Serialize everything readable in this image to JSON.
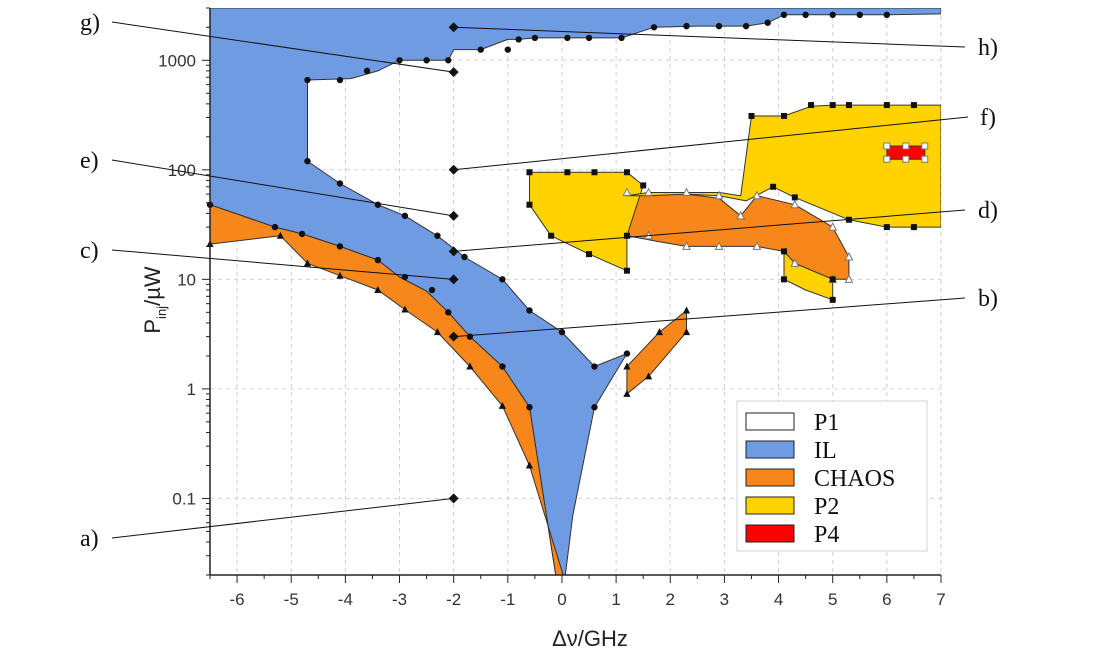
{
  "chart_data": {
    "type": "area",
    "title": "",
    "xlabel": "Δν/GHz",
    "ylabel_main": "P",
    "ylabel_sub": "inj",
    "ylabel_unit": "/µW",
    "xlim": [
      -6.5,
      7
    ],
    "ylim": [
      0.02,
      3000
    ],
    "yscale": "log",
    "grid": true,
    "legend_position": "bottom-right",
    "x_tick_labels": [
      "-6",
      "-5",
      "-4",
      "-3",
      "-2",
      "-1",
      "0",
      "1",
      "2",
      "3",
      "4",
      "5",
      "6",
      "7"
    ],
    "y_tick_labels": [
      "0.1",
      "1",
      "10",
      "100",
      "1000"
    ],
    "legend": [
      {
        "label": "P1",
        "color": "#ffffff"
      },
      {
        "label": "IL",
        "color": "#6f9be3"
      },
      {
        "label": "CHAOS",
        "color": "#f7861b"
      },
      {
        "label": "P2",
        "color": "#ffd200"
      },
      {
        "label": "P4",
        "color": "#ff0000"
      }
    ],
    "regions": [
      {
        "name": "IL",
        "color": "#6f9be3",
        "polygons": [
          [
            [
              -6.5,
              3000
            ],
            [
              7,
              3000
            ],
            [
              7,
              2650
            ],
            [
              6,
              2600
            ],
            [
              5.5,
              2600
            ],
            [
              5,
              2600
            ],
            [
              4.5,
              2600
            ],
            [
              4.1,
              2600
            ],
            [
              3.8,
              2200
            ],
            [
              3.4,
              2050
            ],
            [
              2.9,
              2050
            ],
            [
              2.5,
              2050
            ],
            [
              1.7,
              2000
            ],
            [
              1.1,
              1600
            ],
            [
              0.5,
              1600
            ],
            [
              0.1,
              1600
            ],
            [
              -0.5,
              1600
            ],
            [
              -0.8,
              1550
            ],
            [
              -1.0,
              1550
            ],
            [
              -1.5,
              1250
            ],
            [
              -2.0,
              1250
            ],
            [
              -2.1,
              1000
            ],
            [
              -2.5,
              1000
            ],
            [
              -3.0,
              1000
            ],
            [
              -3.4,
              800
            ],
            [
              -3.9,
              680
            ],
            [
              -4.7,
              660
            ],
            [
              -4.7,
              120
            ],
            [
              -4.1,
              75
            ],
            [
              -3.4,
              48
            ],
            [
              -2.9,
              38
            ],
            [
              -2.3,
              25
            ],
            [
              -1.8,
              16
            ],
            [
              -1.1,
              10
            ],
            [
              -0.6,
              5.2
            ],
            [
              0.0,
              3.3
            ],
            [
              0.6,
              1.6
            ],
            [
              1.2,
              2.1
            ],
            [
              0.6,
              0.68
            ],
            [
              0.2,
              0.07
            ],
            [
              0.05,
              0.018
            ],
            [
              -0.1,
              0.018
            ],
            [
              -0.6,
              0.68
            ],
            [
              -1.1,
              1.6
            ],
            [
              -1.7,
              3.0
            ],
            [
              -2.1,
              5.0
            ],
            [
              -2.5,
              7.8
            ],
            [
              -3.0,
              10.5
            ],
            [
              -3.4,
              15
            ],
            [
              -4.1,
              20
            ],
            [
              -4.8,
              26
            ],
            [
              -5.3,
              30
            ],
            [
              -6.5,
              48
            ]
          ]
        ]
      },
      {
        "name": "CHAOS",
        "color": "#f7861b",
        "polygons": [
          [
            [
              -6.5,
              48
            ],
            [
              -5.3,
              30
            ],
            [
              -4.8,
              26
            ],
            [
              -4.1,
              20
            ],
            [
              -3.4,
              15
            ],
            [
              -3.0,
              10.5
            ],
            [
              -2.5,
              7.8
            ],
            [
              -2.1,
              5.0
            ],
            [
              -1.7,
              3.0
            ],
            [
              -1.1,
              1.6
            ],
            [
              -0.6,
              0.68
            ],
            [
              -0.1,
              0.018
            ],
            [
              0.05,
              0.018
            ],
            [
              -0.6,
              0.2
            ],
            [
              -1.1,
              0.7
            ],
            [
              -1.7,
              1.6
            ],
            [
              -2.3,
              3.3
            ],
            [
              -2.9,
              5.3
            ],
            [
              -3.4,
              8.0
            ],
            [
              -4.1,
              10.8
            ],
            [
              -4.7,
              14
            ],
            [
              -5.2,
              25
            ],
            [
              -6.5,
              21
            ]
          ],
          [
            [
              1.2,
              1.6
            ],
            [
              1.8,
              3.3
            ],
            [
              2.3,
              5.2
            ],
            [
              2.3,
              3.3
            ],
            [
              1.6,
              1.3
            ],
            [
              1.2,
              0.9
            ]
          ],
          [
            [
              1.2,
              58
            ],
            [
              1.6,
              60
            ],
            [
              2.3,
              60
            ],
            [
              2.9,
              55
            ],
            [
              3.3,
              38
            ],
            [
              3.6,
              58
            ],
            [
              4.3,
              48
            ],
            [
              5.0,
              30
            ],
            [
              5.3,
              16
            ],
            [
              5.3,
              10
            ],
            [
              5.0,
              10
            ],
            [
              4.3,
              14
            ],
            [
              4.1,
              18
            ],
            [
              3.6,
              20
            ],
            [
              2.9,
              20
            ],
            [
              2.3,
              20
            ],
            [
              1.8,
              22
            ],
            [
              1.2,
              25
            ]
          ]
        ]
      },
      {
        "name": "P2",
        "color": "#ffd200",
        "polygons": [
          [
            [
              -0.6,
              95
            ],
            [
              0.1,
              95
            ],
            [
              0.6,
              95
            ],
            [
              1.2,
              95
            ],
            [
              1.5,
              72
            ],
            [
              1.2,
              25
            ],
            [
              1.2,
              12
            ],
            [
              0.5,
              17
            ],
            [
              -0.2,
              25
            ],
            [
              -0.6,
              48
            ]
          ],
          [
            [
              1.2,
              58
            ],
            [
              1.6,
              62
            ],
            [
              2.3,
              62
            ],
            [
              2.9,
              62
            ],
            [
              3.3,
              58
            ],
            [
              3.5,
              310
            ],
            [
              4.1,
              310
            ],
            [
              4.6,
              380
            ],
            [
              5.0,
              390
            ],
            [
              5.3,
              390
            ],
            [
              6.0,
              390
            ],
            [
              7,
              390
            ],
            [
              7,
              30
            ],
            [
              6.0,
              30
            ],
            [
              5.3,
              35
            ],
            [
              4.3,
              56
            ],
            [
              3.9,
              70
            ],
            [
              3.4,
              52
            ],
            [
              2.9,
              58
            ],
            [
              2.3,
              60
            ],
            [
              1.6,
              58
            ]
          ],
          [
            [
              4.1,
              18
            ],
            [
              4.3,
              14
            ],
            [
              5.0,
              10
            ],
            [
              5.0,
              6.5
            ],
            [
              4.5,
              8.0
            ],
            [
              4.1,
              10
            ]
          ]
        ]
      },
      {
        "name": "P4",
        "color": "#ff0000",
        "polygons": [
          [
            [
              6.0,
              165
            ],
            [
              6.7,
              165
            ],
            [
              6.7,
              125
            ],
            [
              6.0,
              125
            ]
          ]
        ]
      }
    ],
    "boundary_markers": [
      {
        "shape": "circle",
        "points": [
          [
            -6.5,
            48
          ],
          [
            -5.3,
            30
          ],
          [
            -4.8,
            26
          ],
          [
            -4.1,
            20
          ],
          [
            -3.4,
            15
          ],
          [
            -2.9,
            10.5
          ],
          [
            -2.4,
            8.0
          ],
          [
            -2.1,
            5.0
          ],
          [
            -1.7,
            3.0
          ],
          [
            -1.1,
            1.6
          ],
          [
            -0.6,
            0.68
          ],
          [
            -4.7,
            120
          ],
          [
            -4.1,
            75
          ],
          [
            -3.4,
            48
          ],
          [
            -2.9,
            38
          ],
          [
            -2.3,
            25
          ],
          [
            -1.8,
            16
          ],
          [
            -1.1,
            10
          ],
          [
            -0.6,
            5.2
          ],
          [
            0.0,
            3.3
          ],
          [
            0.6,
            1.6
          ],
          [
            1.2,
            2.1
          ],
          [
            0.6,
            0.68
          ],
          [
            -4.7,
            660
          ],
          [
            -4.1,
            660
          ],
          [
            -3.6,
            800
          ],
          [
            -3.0,
            1000
          ],
          [
            -2.5,
            1000
          ],
          [
            -2.1,
            1000
          ],
          [
            -1.5,
            1250
          ],
          [
            -1.0,
            1250
          ],
          [
            -0.8,
            1550
          ],
          [
            -0.5,
            1600
          ],
          [
            0.1,
            1600
          ],
          [
            0.5,
            1600
          ],
          [
            1.1,
            1600
          ],
          [
            1.7,
            2000
          ],
          [
            2.3,
            2050
          ],
          [
            2.9,
            2050
          ],
          [
            3.4,
            2050
          ],
          [
            3.8,
            2200
          ],
          [
            4.1,
            2600
          ],
          [
            4.5,
            2600
          ],
          [
            5.0,
            2600
          ],
          [
            5.5,
            2600
          ],
          [
            6.0,
            2600
          ]
        ]
      },
      {
        "shape": "triangle",
        "points": [
          [
            -6.5,
            21
          ],
          [
            -5.2,
            25
          ],
          [
            -4.7,
            14
          ],
          [
            -4.1,
            10.8
          ],
          [
            -3.4,
            8.0
          ],
          [
            -2.9,
            5.3
          ],
          [
            -2.3,
            3.3
          ],
          [
            -1.7,
            1.6
          ],
          [
            -1.1,
            0.7
          ],
          [
            -0.6,
            0.2
          ],
          [
            1.2,
            1.6
          ],
          [
            1.2,
            0.9
          ],
          [
            1.6,
            1.3
          ],
          [
            1.8,
            3.3
          ],
          [
            2.3,
            3.3
          ],
          [
            2.3,
            5.2
          ]
        ]
      },
      {
        "shape": "open-triangle",
        "points": [
          [
            1.2,
            62
          ],
          [
            1.6,
            62
          ],
          [
            2.3,
            62
          ],
          [
            2.9,
            58
          ],
          [
            3.3,
            38
          ],
          [
            3.6,
            58
          ],
          [
            4.3,
            48
          ],
          [
            5.0,
            30
          ],
          [
            5.3,
            16
          ],
          [
            5.3,
            10
          ],
          [
            5.0,
            10
          ],
          [
            1.6,
            25
          ],
          [
            2.3,
            20
          ],
          [
            2.9,
            20
          ],
          [
            3.6,
            20
          ],
          [
            4.3,
            14
          ]
        ]
      },
      {
        "shape": "square",
        "points": [
          [
            -0.6,
            95
          ],
          [
            0.1,
            95
          ],
          [
            0.6,
            95
          ],
          [
            1.2,
            95
          ],
          [
            1.5,
            72
          ],
          [
            -0.6,
            48
          ],
          [
            -0.2,
            25
          ],
          [
            0.5,
            17
          ],
          [
            1.2,
            12
          ],
          [
            1.2,
            25
          ],
          [
            3.5,
            310
          ],
          [
            4.1,
            310
          ],
          [
            4.6,
            390
          ],
          [
            5.0,
            390
          ],
          [
            5.3,
            390
          ],
          [
            6.0,
            390
          ],
          [
            6.5,
            390
          ],
          [
            3.9,
            70
          ],
          [
            4.3,
            56
          ],
          [
            5.3,
            35
          ],
          [
            6.0,
            30
          ],
          [
            6.5,
            30
          ],
          [
            5.0,
            10
          ],
          [
            5.0,
            6.5
          ],
          [
            4.1,
            18
          ],
          [
            4.1,
            10
          ]
        ]
      },
      {
        "shape": "open-square",
        "points": [
          [
            6.0,
            165
          ],
          [
            6.7,
            165
          ],
          [
            6.7,
            125
          ],
          [
            6.0,
            125
          ],
          [
            6.35,
            165
          ],
          [
            6.35,
            125
          ]
        ]
      }
    ],
    "annotations": [
      {
        "label": "a)",
        "point": [
          -2,
          0.1
        ]
      },
      {
        "label": "b)",
        "point": [
          -2,
          3.0
        ]
      },
      {
        "label": "c)",
        "point": [
          -2,
          10
        ]
      },
      {
        "label": "d)",
        "point": [
          -2,
          18
        ]
      },
      {
        "label": "e)",
        "point": [
          -2,
          38
        ]
      },
      {
        "label": "f)",
        "point": [
          -2,
          100
        ]
      },
      {
        "label": "g)",
        "point": [
          -2,
          780
        ]
      },
      {
        "label": "h)",
        "point": [
          -2,
          2000
        ]
      }
    ]
  }
}
